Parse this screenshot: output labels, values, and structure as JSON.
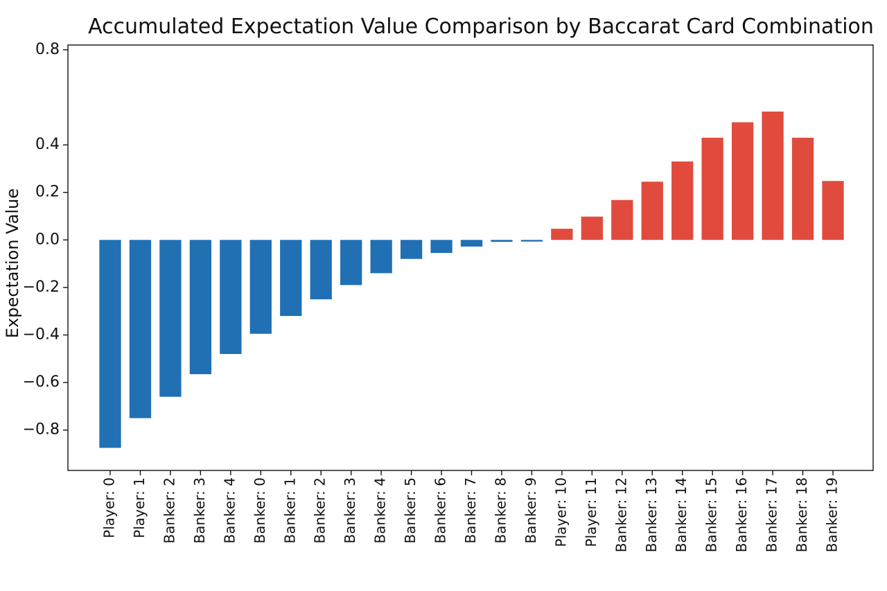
{
  "chart_data": {
    "type": "bar",
    "title": "Accumulated Expectation Value Comparison by Baccarat Card Combination",
    "ylabel": "Expectation Value",
    "xlabel": "",
    "ylim": [
      -0.97,
      0.82
    ],
    "yticks": [
      0.8,
      0.4,
      0.2,
      0.0,
      -0.2,
      -0.4,
      -0.6,
      -0.8
    ],
    "ytick_labels": [
      "0.8",
      "0.4",
      "0.2",
      "0.0",
      "−0.2",
      "−0.4",
      "−0.6",
      "−0.8"
    ],
    "categories": [
      "Player: 0",
      "Player: 1",
      "Banker: 2",
      "Banker: 3",
      "Banker: 4",
      "Banker: 0",
      "Banker: 1",
      "Banker: 2",
      "Banker: 3",
      "Banker: 4",
      "Banker: 5",
      "Banker: 6",
      "Banker: 7",
      "Banker: 8",
      "Banker: 9",
      "Player: 10",
      "Player: 11",
      "Banker: 12",
      "Banker: 13",
      "Banker: 14",
      "Banker: 15",
      "Banker: 16",
      "Banker: 17",
      "Banker: 18",
      "Banker: 19"
    ],
    "values": [
      -0.875,
      -0.75,
      -0.66,
      -0.565,
      -0.48,
      -0.395,
      -0.32,
      -0.25,
      -0.19,
      -0.14,
      -0.08,
      -0.055,
      -0.028,
      -0.008,
      -0.007,
      0.047,
      0.098,
      0.168,
      0.245,
      0.33,
      0.43,
      0.495,
      0.54,
      0.43,
      0.248
    ],
    "negative_color": "#2170b4",
    "positive_color": "#e04b3e",
    "grid": false
  }
}
